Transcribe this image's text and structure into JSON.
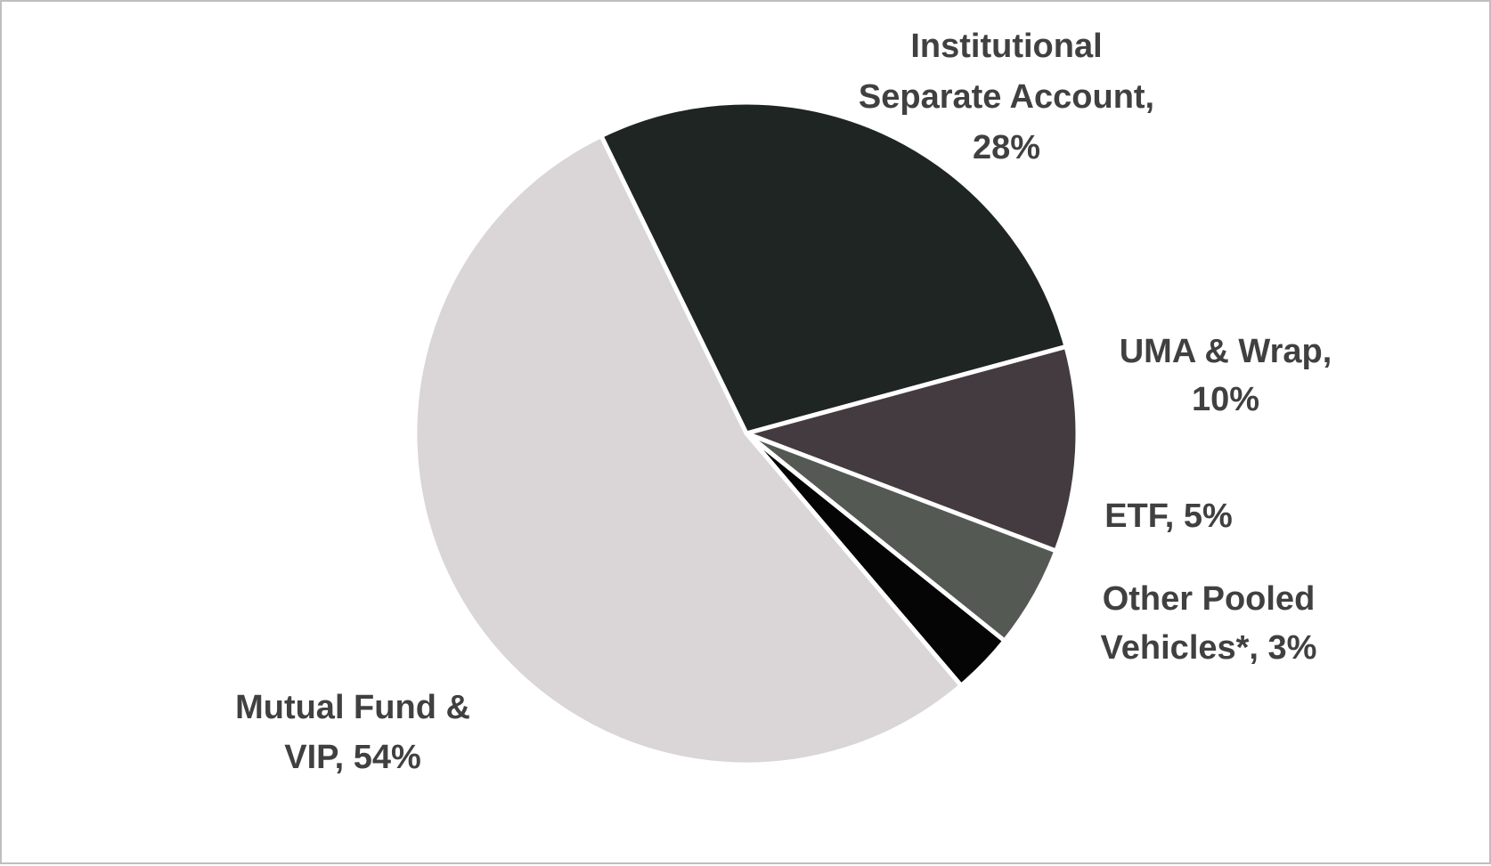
{
  "chart_data": {
    "type": "pie",
    "title": "",
    "start_angle_deg": 334,
    "direction": "clockwise",
    "legend": "none",
    "slices": [
      {
        "name": "Institutional Separate Account",
        "value": 28,
        "label_lines": [
          "Institutional",
          "Separate Account,",
          "28%"
        ],
        "color": "#1f2523"
      },
      {
        "name": "UMA & Wrap",
        "value": 10,
        "label_lines": [
          "UMA & Wrap,",
          "10%"
        ],
        "color": "#433b40"
      },
      {
        "name": "ETF",
        "value": 5,
        "label_lines": [
          "ETF, 5%"
        ],
        "color": "#545953"
      },
      {
        "name": "Other Pooled Vehicles*",
        "value": 3,
        "label_lines": [
          "Other Pooled",
          "Vehicles*, 3%"
        ],
        "color": "#050505"
      },
      {
        "name": "Mutual Fund & VIP",
        "value": 54,
        "label_lines": [
          "Mutual Fund &",
          "VIP, 54%"
        ],
        "color": "#dad5d7"
      }
    ]
  }
}
